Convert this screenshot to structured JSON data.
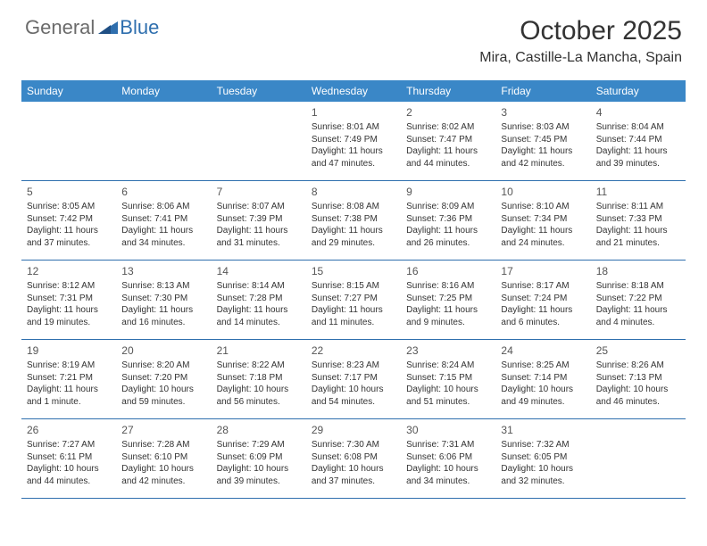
{
  "brand": {
    "part1": "General",
    "part2": "Blue"
  },
  "header": {
    "month_title": "October 2025",
    "location": "Mira, Castille-La Mancha, Spain"
  },
  "colors": {
    "header_bar": "#3a87c7",
    "rule": "#2f6fae",
    "text": "#333333",
    "logo_gray": "#6b6b6b",
    "logo_blue": "#2f6fae",
    "background": "#ffffff"
  },
  "weekdays": [
    "Sunday",
    "Monday",
    "Tuesday",
    "Wednesday",
    "Thursday",
    "Friday",
    "Saturday"
  ],
  "weeks": [
    [
      null,
      null,
      null,
      {
        "n": "1",
        "sr": "8:01 AM",
        "ss": "7:49 PM",
        "dl": "11 hours and 47 minutes."
      },
      {
        "n": "2",
        "sr": "8:02 AM",
        "ss": "7:47 PM",
        "dl": "11 hours and 44 minutes."
      },
      {
        "n": "3",
        "sr": "8:03 AM",
        "ss": "7:45 PM",
        "dl": "11 hours and 42 minutes."
      },
      {
        "n": "4",
        "sr": "8:04 AM",
        "ss": "7:44 PM",
        "dl": "11 hours and 39 minutes."
      }
    ],
    [
      {
        "n": "5",
        "sr": "8:05 AM",
        "ss": "7:42 PM",
        "dl": "11 hours and 37 minutes."
      },
      {
        "n": "6",
        "sr": "8:06 AM",
        "ss": "7:41 PM",
        "dl": "11 hours and 34 minutes."
      },
      {
        "n": "7",
        "sr": "8:07 AM",
        "ss": "7:39 PM",
        "dl": "11 hours and 31 minutes."
      },
      {
        "n": "8",
        "sr": "8:08 AM",
        "ss": "7:38 PM",
        "dl": "11 hours and 29 minutes."
      },
      {
        "n": "9",
        "sr": "8:09 AM",
        "ss": "7:36 PM",
        "dl": "11 hours and 26 minutes."
      },
      {
        "n": "10",
        "sr": "8:10 AM",
        "ss": "7:34 PM",
        "dl": "11 hours and 24 minutes."
      },
      {
        "n": "11",
        "sr": "8:11 AM",
        "ss": "7:33 PM",
        "dl": "11 hours and 21 minutes."
      }
    ],
    [
      {
        "n": "12",
        "sr": "8:12 AM",
        "ss": "7:31 PM",
        "dl": "11 hours and 19 minutes."
      },
      {
        "n": "13",
        "sr": "8:13 AM",
        "ss": "7:30 PM",
        "dl": "11 hours and 16 minutes."
      },
      {
        "n": "14",
        "sr": "8:14 AM",
        "ss": "7:28 PM",
        "dl": "11 hours and 14 minutes."
      },
      {
        "n": "15",
        "sr": "8:15 AM",
        "ss": "7:27 PM",
        "dl": "11 hours and 11 minutes."
      },
      {
        "n": "16",
        "sr": "8:16 AM",
        "ss": "7:25 PM",
        "dl": "11 hours and 9 minutes."
      },
      {
        "n": "17",
        "sr": "8:17 AM",
        "ss": "7:24 PM",
        "dl": "11 hours and 6 minutes."
      },
      {
        "n": "18",
        "sr": "8:18 AM",
        "ss": "7:22 PM",
        "dl": "11 hours and 4 minutes."
      }
    ],
    [
      {
        "n": "19",
        "sr": "8:19 AM",
        "ss": "7:21 PM",
        "dl": "11 hours and 1 minute."
      },
      {
        "n": "20",
        "sr": "8:20 AM",
        "ss": "7:20 PM",
        "dl": "10 hours and 59 minutes."
      },
      {
        "n": "21",
        "sr": "8:22 AM",
        "ss": "7:18 PM",
        "dl": "10 hours and 56 minutes."
      },
      {
        "n": "22",
        "sr": "8:23 AM",
        "ss": "7:17 PM",
        "dl": "10 hours and 54 minutes."
      },
      {
        "n": "23",
        "sr": "8:24 AM",
        "ss": "7:15 PM",
        "dl": "10 hours and 51 minutes."
      },
      {
        "n": "24",
        "sr": "8:25 AM",
        "ss": "7:14 PM",
        "dl": "10 hours and 49 minutes."
      },
      {
        "n": "25",
        "sr": "8:26 AM",
        "ss": "7:13 PM",
        "dl": "10 hours and 46 minutes."
      }
    ],
    [
      {
        "n": "26",
        "sr": "7:27 AM",
        "ss": "6:11 PM",
        "dl": "10 hours and 44 minutes."
      },
      {
        "n": "27",
        "sr": "7:28 AM",
        "ss": "6:10 PM",
        "dl": "10 hours and 42 minutes."
      },
      {
        "n": "28",
        "sr": "7:29 AM",
        "ss": "6:09 PM",
        "dl": "10 hours and 39 minutes."
      },
      {
        "n": "29",
        "sr": "7:30 AM",
        "ss": "6:08 PM",
        "dl": "10 hours and 37 minutes."
      },
      {
        "n": "30",
        "sr": "7:31 AM",
        "ss": "6:06 PM",
        "dl": "10 hours and 34 minutes."
      },
      {
        "n": "31",
        "sr": "7:32 AM",
        "ss": "6:05 PM",
        "dl": "10 hours and 32 minutes."
      },
      null
    ]
  ],
  "labels": {
    "sunrise": "Sunrise: ",
    "sunset": "Sunset: ",
    "daylight": "Daylight: "
  }
}
